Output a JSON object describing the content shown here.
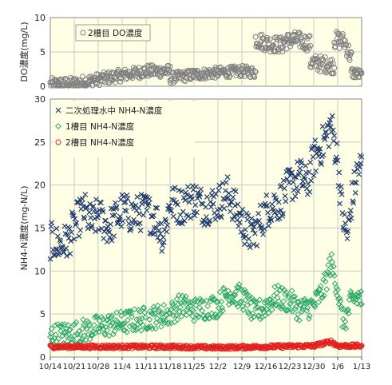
{
  "chart_data": [
    {
      "type": "scatter",
      "ylabel": "DO濃度(mg/L)",
      "ylim": [
        0,
        10
      ],
      "yticks": [
        0,
        5,
        10
      ],
      "grid": true,
      "legend_position": "top-left",
      "series": [
        {
          "name": "2槽目 DO濃度",
          "color": "#808080",
          "marker": "open-circle",
          "segments": [
            {
              "x_start": 0,
              "x_end": 35,
              "profile": [
                [
                  0,
                  0.3
                ],
                [
                  7,
                  0.4
                ],
                [
                  14,
                  1.0
                ],
                [
                  21,
                  1.6
                ],
                [
                  28,
                  2.2
                ],
                [
                  35,
                  2.2
                ]
              ],
              "spread": 0.9
            },
            {
              "x_start": 35,
              "x_end": 60,
              "profile": [
                [
                  35,
                  1.2
                ],
                [
                  42,
                  1.7
                ],
                [
                  49,
                  2.0
                ],
                [
                  56,
                  2.2
                ],
                [
                  60,
                  2.0
                ]
              ],
              "spread": 0.8
            },
            {
              "x_start": 60,
              "x_end": 68,
              "profile": [
                [
                  60,
                  6.8
                ],
                [
                  64,
                  6.2
                ],
                [
                  68,
                  6.0
                ]
              ],
              "spread": 1.2
            },
            {
              "x_start": 68,
              "x_end": 76,
              "profile": [
                [
                  68,
                  6.5
                ],
                [
                  72,
                  6.8
                ],
                [
                  76,
                  6.2
                ]
              ],
              "spread": 1.2
            },
            {
              "x_start": 76,
              "x_end": 83,
              "profile": [
                [
                  76,
                  3.5
                ],
                [
                  80,
                  3.2
                ],
                [
                  83,
                  3.0
                ]
              ],
              "spread": 1.2
            },
            {
              "x_start": 83,
              "x_end": 88,
              "profile": [
                [
                  83,
                  6.8
                ],
                [
                  86,
                  6.5
                ],
                [
                  88,
                  4.0
                ]
              ],
              "spread": 1.3
            },
            {
              "x_start": 88,
              "x_end": 91,
              "profile": [
                [
                  88,
                  2.0
                ],
                [
                  90,
                  1.8
                ],
                [
                  91,
                  1.5
                ]
              ],
              "spread": 0.8
            }
          ]
        }
      ]
    },
    {
      "type": "scatter",
      "xlabel": "",
      "ylabel": "NH4-N濃度(mg-N/L)",
      "ylim": [
        0,
        30
      ],
      "yticks": [
        0,
        5,
        10,
        15,
        20,
        25,
        30
      ],
      "grid": true,
      "legend_position": "top-left",
      "x_tick_labels": [
        "10/14",
        "10/21",
        "10/28",
        "11/4",
        "11/11",
        "11/18",
        "11/25",
        "12/2",
        "12/9",
        "12/16",
        "12/23",
        "12/30",
        "1/6",
        "1/13"
      ],
      "x_range_days": [
        0,
        91
      ],
      "series": [
        {
          "name": "二次処理水中 NH4-N濃度",
          "color": "#1f3a6e",
          "marker": "x",
          "profile": [
            [
              0,
              13.5
            ],
            [
              3,
              13.0
            ],
            [
              5,
              13.5
            ],
            [
              8,
              16.0
            ],
            [
              10,
              17.0
            ],
            [
              12,
              15.5
            ],
            [
              14,
              16.5
            ],
            [
              17,
              15.0
            ],
            [
              21,
              17.0
            ],
            [
              24,
              16.5
            ],
            [
              28,
              17.0
            ],
            [
              31,
              16.0
            ],
            [
              33,
              14.0
            ],
            [
              35,
              18.0
            ],
            [
              38,
              17.5
            ],
            [
              42,
              18.5
            ],
            [
              45,
              17.5
            ],
            [
              49,
              18.0
            ],
            [
              52,
              19.0
            ],
            [
              55,
              16.5
            ],
            [
              57,
              15.0
            ],
            [
              59,
              14.0
            ],
            [
              61,
              15.5
            ],
            [
              64,
              17.5
            ],
            [
              67,
              18.0
            ],
            [
              70,
              20.0
            ],
            [
              73,
              21.0
            ],
            [
              75,
              20.0
            ],
            [
              77,
              23.0
            ],
            [
              80,
              25.0
            ],
            [
              82,
              27.0
            ],
            [
              84,
              23.0
            ],
            [
              85,
              18.0
            ],
            [
              86,
              15.0
            ],
            [
              87,
              14.0
            ],
            [
              88,
              18.0
            ],
            [
              90,
              22.0
            ],
            [
              91,
              22.0
            ]
          ],
          "spread": 2.2
        },
        {
          "name": "1槽目 NH4-N濃度",
          "color": "#2aa868",
          "marker": "open-diamond",
          "profile": [
            [
              0,
              2.5
            ],
            [
              7,
              2.8
            ],
            [
              14,
              3.5
            ],
            [
              21,
              4.0
            ],
            [
              28,
              4.5
            ],
            [
              35,
              5.0
            ],
            [
              38,
              6.0
            ],
            [
              42,
              5.5
            ],
            [
              49,
              6.0
            ],
            [
              52,
              7.5
            ],
            [
              56,
              7.0
            ],
            [
              60,
              5.0
            ],
            [
              63,
              6.0
            ],
            [
              66,
              7.0
            ],
            [
              70,
              6.5
            ],
            [
              73,
              5.5
            ],
            [
              77,
              6.0
            ],
            [
              80,
              8.0
            ],
            [
              82,
              11.0
            ],
            [
              84,
              8.0
            ],
            [
              85,
              5.0
            ],
            [
              86,
              4.0
            ],
            [
              88,
              6.5
            ],
            [
              90,
              7.0
            ],
            [
              91,
              6.5
            ]
          ],
          "spread": 1.4
        },
        {
          "name": "2槽目 NH4-N濃度",
          "color": "#e02020",
          "marker": "open-circle",
          "profile": [
            [
              0,
              1.2
            ],
            [
              21,
              1.2
            ],
            [
              35,
              1.2
            ],
            [
              49,
              1.1
            ],
            [
              63,
              1.2
            ],
            [
              77,
              1.3
            ],
            [
              82,
              1.8
            ],
            [
              84,
              1.3
            ],
            [
              91,
              1.3
            ]
          ],
          "spread": 0.2
        }
      ]
    }
  ]
}
